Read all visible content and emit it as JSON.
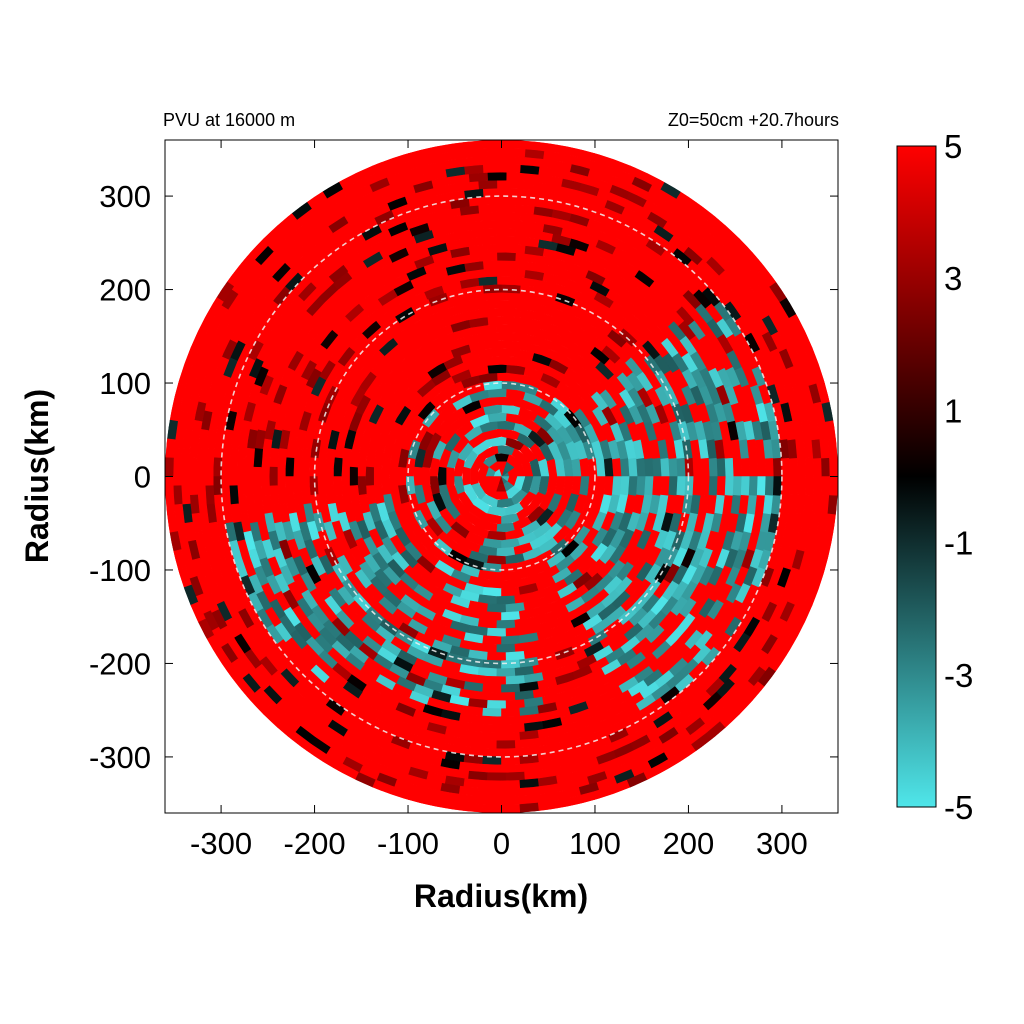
{
  "chart_data": {
    "type": "heatmap",
    "title_left": "PVU at 16000 m",
    "title_right": "Z0=50cm  +20.7hours",
    "xlabel": "Radius(km)",
    "ylabel": "Radius(km)",
    "xlim": [
      -360,
      360
    ],
    "ylim": [
      -360,
      360
    ],
    "x_ticks": [
      -300,
      -200,
      -100,
      0,
      100,
      200,
      300
    ],
    "y_ticks": [
      300,
      200,
      100,
      0,
      -100,
      -200,
      -300
    ],
    "domain_radius_km": 360,
    "reference_circles_km": [
      100,
      200,
      300
    ],
    "colorbar": {
      "min": -5,
      "max": 5,
      "tick_labels": [
        "5",
        "3",
        "1",
        "-1",
        "-3",
        "-5"
      ],
      "tick_values": [
        5,
        3,
        1,
        -1,
        -3,
        -5
      ],
      "colors": {
        "low": "#4fe6ea",
        "mid": "#000000",
        "high": "#ff0000"
      }
    },
    "field_summary": {
      "dominant_value": 5,
      "negative_regions": [
        {
          "description": "east-southeast arc",
          "radius_km": [
            60,
            300
          ],
          "angle_deg": [
            -60,
            40
          ],
          "value": -5
        },
        {
          "description": "west-southwest arc",
          "radius_km": [
            120,
            300
          ],
          "angle_deg": [
            190,
            230
          ],
          "value": -5
        },
        {
          "description": "south-west patches",
          "radius_km": [
            100,
            260
          ],
          "angle_deg": [
            230,
            280
          ],
          "value": -5
        },
        {
          "description": "inner core speckle",
          "radius_km": [
            0,
            100
          ],
          "angle_deg": [
            0,
            360
          ],
          "value": -5
        }
      ]
    }
  }
}
